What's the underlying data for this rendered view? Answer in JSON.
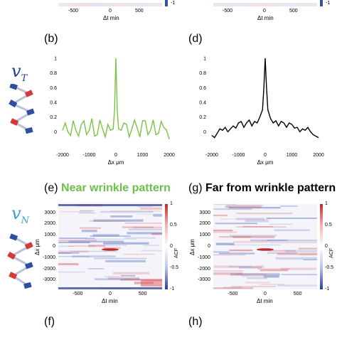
{
  "labels": {
    "b": "(b)",
    "d": "(d)",
    "e": "(e)",
    "e_title": "Near wrinkle pattern",
    "g": "(g)",
    "g_title": "Far from wrinkle pattern",
    "f": "(f)",
    "h": "(h)"
  },
  "symbols": {
    "v_t_main": "v",
    "v_t_sub": "T",
    "v_n_main": "v",
    "v_n_sub": "N"
  },
  "axis_titles": {
    "dt_min": "Δt min",
    "dx_um": "Δx μm",
    "acf": "ACF"
  },
  "colors": {
    "green_line": "#7dc242",
    "black_line": "#000000",
    "title_green": "#6cc04a",
    "vt_color": "#1f3f8f",
    "vn_color": "#3aa0d8"
  },
  "ticks": {
    "top_dt": [
      "-500",
      "0",
      "500"
    ],
    "top_cb": [
      "-1"
    ],
    "corr_x": [
      "-2000",
      "-1000",
      "0",
      "1000",
      "2000"
    ],
    "corr_y": [
      "1",
      "0.8",
      "0.6",
      "0.4",
      "0.2",
      "0"
    ],
    "heat_y": [
      "3000",
      "2000",
      "1000",
      "0",
      "-1000",
      "-2000",
      "-3000"
    ],
    "heat_x": [
      "-500",
      "0",
      "500"
    ],
    "cb": [
      "1",
      "0.5",
      "0",
      "-0.5",
      "-1"
    ]
  },
  "chart_data": [
    {
      "id": "b",
      "type": "line",
      "xlabel": "Δx μm",
      "xlim": [
        -2000,
        2000
      ],
      "ylim": [
        -0.2,
        1
      ],
      "color": "#7dc242",
      "x": [
        -2000,
        -1900,
        -1800,
        -1700,
        -1600,
        -1500,
        -1400,
        -1300,
        -1200,
        -1100,
        -1000,
        -900,
        -800,
        -700,
        -600,
        -500,
        -400,
        -300,
        -200,
        -100,
        -50,
        0,
        50,
        100,
        200,
        300,
        400,
        500,
        600,
        700,
        800,
        900,
        1000,
        1100,
        1200,
        1300,
        1400,
        1500,
        1600,
        1700,
        1800,
        1900,
        2000
      ],
      "y": [
        0.02,
        0.12,
        0.0,
        -0.05,
        0.15,
        0.02,
        -0.06,
        0.1,
        0.15,
        -0.04,
        0.02,
        0.18,
        -0.06,
        -0.04,
        0.16,
        0.04,
        -0.07,
        0.1,
        0.02,
        0.04,
        0.3,
        1.0,
        0.3,
        0.04,
        0.02,
        0.12,
        0.1,
        -0.07,
        0.04,
        0.16,
        0.05,
        -0.07,
        0.15,
        0.15,
        -0.04,
        0.02,
        0.16,
        -0.04,
        -0.02,
        0.14,
        0.06,
        0.02,
        -0.1
      ]
    },
    {
      "id": "d",
      "type": "line",
      "xlabel": "Δx μm",
      "xlim": [
        -2000,
        2000
      ],
      "ylim": [
        -0.2,
        1
      ],
      "color": "#000000",
      "x": [
        -2000,
        -1900,
        -1800,
        -1700,
        -1600,
        -1500,
        -1400,
        -1300,
        -1200,
        -1100,
        -1000,
        -900,
        -800,
        -700,
        -600,
        -500,
        -400,
        -300,
        -200,
        -100,
        -50,
        0,
        50,
        100,
        200,
        300,
        400,
        500,
        600,
        700,
        800,
        900,
        1000,
        1100,
        1200,
        1300,
        1400,
        1500,
        1600,
        1700,
        1800,
        1900,
        2000
      ],
      "y": [
        -0.05,
        -0.08,
        -0.02,
        0.04,
        0.02,
        0.06,
        0.0,
        0.04,
        0.08,
        0.05,
        0.12,
        0.14,
        0.06,
        0.12,
        0.16,
        0.08,
        0.14,
        0.12,
        0.2,
        0.3,
        0.6,
        1.0,
        0.6,
        0.3,
        0.18,
        0.12,
        0.15,
        0.08,
        0.14,
        0.12,
        0.06,
        0.12,
        0.1,
        0.05,
        0.06,
        0.0,
        0.04,
        0.02,
        0.06,
        0.0,
        -0.04,
        -0.06,
        -0.08
      ]
    },
    {
      "id": "e",
      "type": "heatmap",
      "xlabel": "Δt min",
      "ylabel": "Δx μm",
      "colorbar_label": "ACF",
      "xlim": [
        -800,
        800
      ],
      "ylim": [
        -3800,
        3800
      ],
      "clim": [
        -1,
        1
      ]
    },
    {
      "id": "g",
      "type": "heatmap",
      "xlabel": "Δt min",
      "ylabel": "Δx μm",
      "colorbar_label": "ACF",
      "xlim": [
        -800,
        800
      ],
      "ylim": [
        -3800,
        3800
      ],
      "clim": [
        -1,
        1
      ]
    }
  ]
}
